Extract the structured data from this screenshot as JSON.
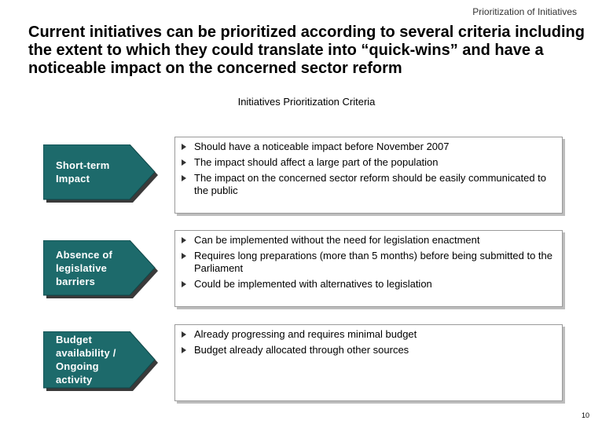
{
  "header": {
    "section": "Prioritization of Initiatives"
  },
  "title": "Current initiatives can be prioritized according to several criteria including the extent to which they could translate into “quick-wins” and have a noticeable impact on the concerned sector reform",
  "subtitle": "Initiatives Prioritization Criteria",
  "colors": {
    "arrow_fill": "#1d6a6b",
    "arrow_shadow": "#3a3a3a"
  },
  "criteria": [
    {
      "label": "Short-term Impact",
      "bullets": [
        "Should have a noticeable impact before November 2007",
        "The impact should affect a large part of the population",
        "The impact on the concerned sector reform should be easily communicated to the public"
      ]
    },
    {
      "label": "Absence of legislative barriers",
      "bullets": [
        "Can be implemented without the need for legislation enactment",
        "Requires long preparations (more than 5 months) before being submitted to the Parliament",
        "Could be implemented with alternatives to legislation"
      ]
    },
    {
      "label": "Budget availability / Ongoing activity",
      "bullets": [
        "Already progressing and requires minimal budget",
        "Budget already allocated through other sources"
      ]
    }
  ],
  "page_number": "10"
}
